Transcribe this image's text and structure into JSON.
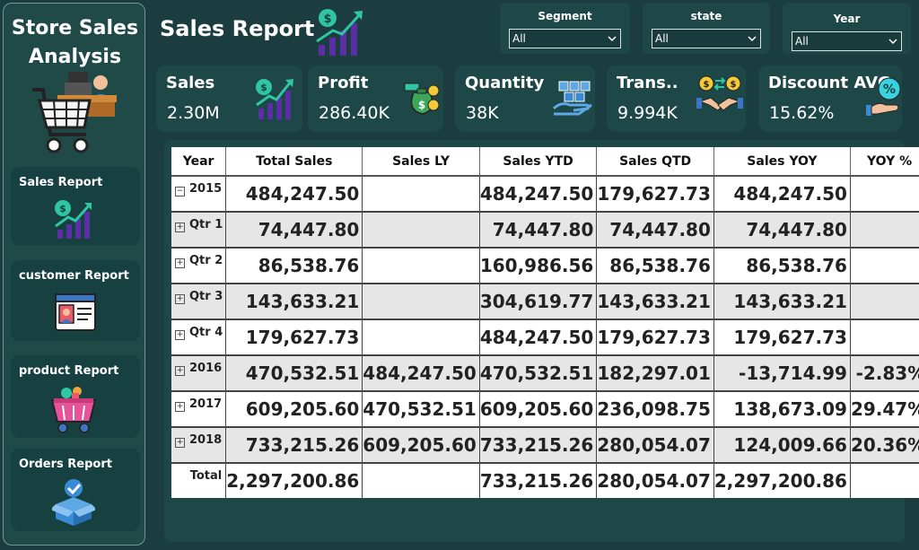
{
  "sidebar": {
    "title_line1": "Store Sales",
    "title_line2": "Analysis",
    "nav": [
      {
        "label": "Sales Report"
      },
      {
        "label": "customer Report"
      },
      {
        "label": "product Report"
      },
      {
        "label": "Orders Report"
      }
    ]
  },
  "header": {
    "title": "Sales Report"
  },
  "slicers": [
    {
      "label": "Segment",
      "value": "All"
    },
    {
      "label": "state",
      "value": "All"
    },
    {
      "label": "Year",
      "value": "All"
    }
  ],
  "kpis": [
    {
      "title": "Sales",
      "value": "2.30M"
    },
    {
      "title": "Profit",
      "value": "286.40K"
    },
    {
      "title": "Quantity",
      "value": "38K"
    },
    {
      "title": "Trans..",
      "value": "9.994K"
    },
    {
      "title": "Discount AVG",
      "value": "15.62%"
    }
  ],
  "table": {
    "headers": [
      "Year",
      "Total Sales",
      "Sales LY",
      "Sales YTD",
      "Sales QTD",
      "Sales YOY",
      "YOY %"
    ],
    "rows": [
      {
        "label": "2015",
        "expand": "−",
        "cells": [
          "484,247.50",
          "",
          "484,247.50",
          "179,627.73",
          "484,247.50",
          ""
        ]
      },
      {
        "label": "Qtr 1",
        "expand": "+",
        "cells": [
          "74,447.80",
          "",
          "74,447.80",
          "74,447.80",
          "74,447.80",
          ""
        ]
      },
      {
        "label": "Qtr 2",
        "expand": "+",
        "cells": [
          "86,538.76",
          "",
          "160,986.56",
          "86,538.76",
          "86,538.76",
          ""
        ]
      },
      {
        "label": "Qtr 3",
        "expand": "+",
        "cells": [
          "143,633.21",
          "",
          "304,619.77",
          "143,633.21",
          "143,633.21",
          ""
        ]
      },
      {
        "label": "Qtr 4",
        "expand": "+",
        "cells": [
          "179,627.73",
          "",
          "484,247.50",
          "179,627.73",
          "179,627.73",
          ""
        ]
      },
      {
        "label": "2016",
        "expand": "+",
        "cells": [
          "470,532.51",
          "484,247.50",
          "470,532.51",
          "182,297.01",
          "-13,714.99",
          "-2.83%"
        ]
      },
      {
        "label": "2017",
        "expand": "+",
        "cells": [
          "609,205.60",
          "470,532.51",
          "609,205.60",
          "236,098.75",
          "138,673.09",
          "29.47%"
        ]
      },
      {
        "label": "2018",
        "expand": "+",
        "cells": [
          "733,215.26",
          "609,205.60",
          "733,215.26",
          "280,054.07",
          "124,009.66",
          "20.36%"
        ]
      }
    ],
    "total": {
      "label": "Total",
      "cells": [
        "2,297,200.86",
        "",
        "733,215.26",
        "280,054.07",
        "2,297,200.86",
        ""
      ]
    }
  },
  "icons": {
    "sales": "dollar-growth-chart-icon",
    "profit": "money-bag-icon",
    "quantity": "boxes-hand-icon",
    "transactions": "handshake-exchange-icon",
    "discount": "percent-hand-icon",
    "customer": "id-card-icon",
    "product": "shopping-basket-icon",
    "orders": "box-check-icon",
    "store": "cashier-cart-icon"
  },
  "colors": {
    "background": "#1c3d3f",
    "panel": "#1e4847",
    "accent_purple": "#5a2fa5",
    "accent_teal": "#2fc6a3"
  }
}
